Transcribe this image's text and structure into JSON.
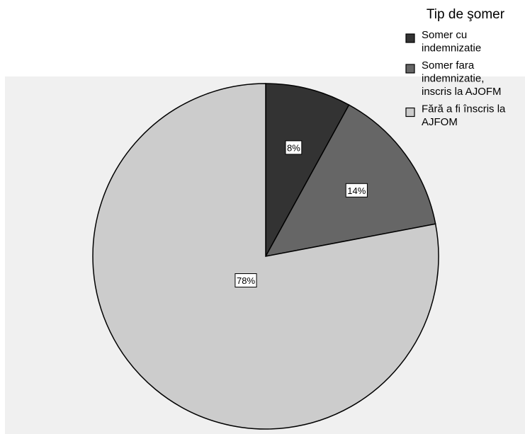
{
  "chart_data": {
    "type": "pie",
    "legend_title": "Tip de şomer",
    "legend_position": "top-right",
    "slices": [
      {
        "legend_lines": [
          "Somer cu",
          "indemnizatie"
        ],
        "label": "8%",
        "value": 8,
        "color": "#333333"
      },
      {
        "legend_lines": [
          "Somer fara",
          "indemnizatie,",
          "inscris la AJOFM"
        ],
        "label": "14%",
        "value": 14,
        "color": "#666666"
      },
      {
        "legend_lines": [
          "Fără a fi înscris la",
          "AJFOM"
        ],
        "label": "78%",
        "value": 78,
        "color": "#cccccc"
      }
    ],
    "plot_background": "#f0f0f0",
    "start_angle_deg": 0,
    "direction": "clockwise"
  }
}
